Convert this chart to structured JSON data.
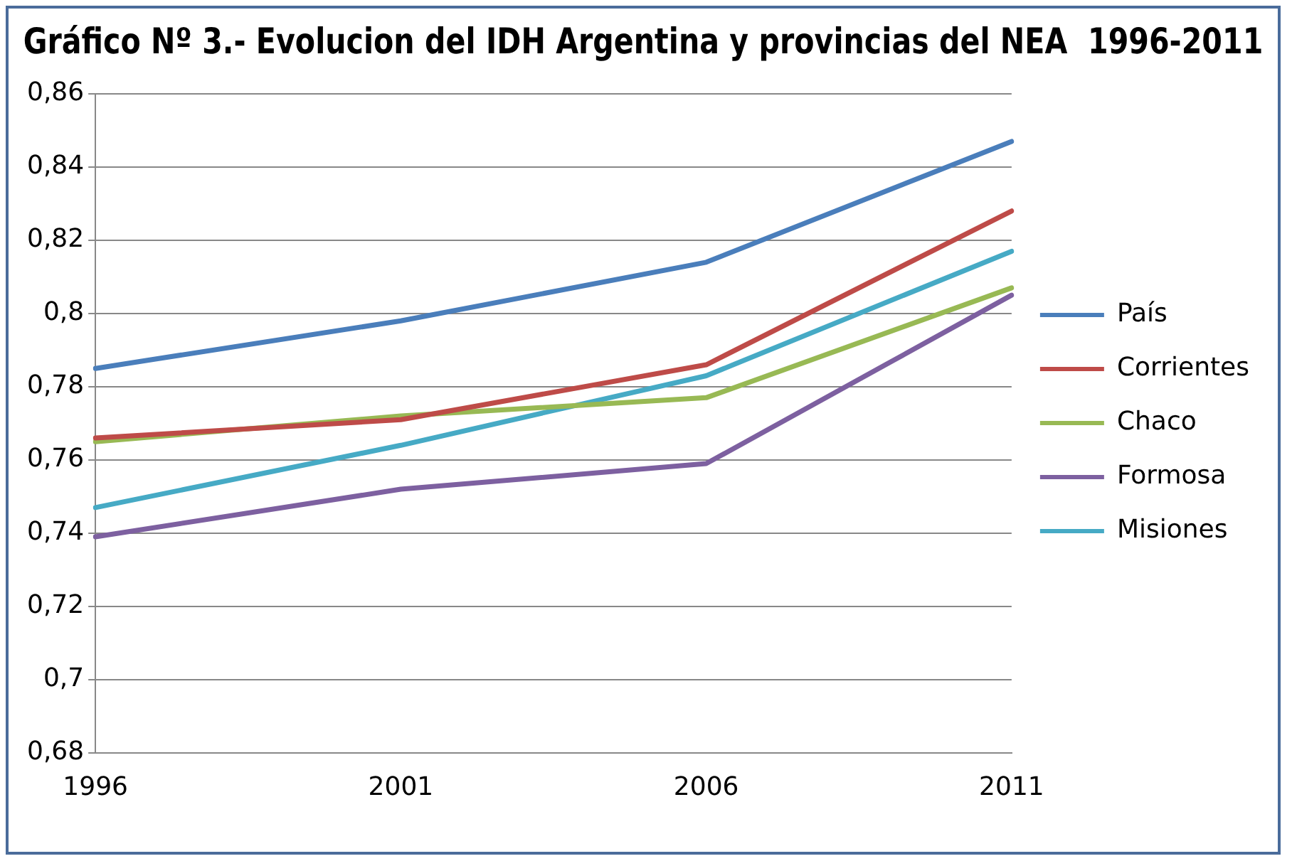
{
  "chart_data": {
    "type": "line",
    "title": "Gráfico Nº 3.- Evolucion del IDH Argentina y provincias del NEA  1996-2011",
    "categories": [
      "1996",
      "2001",
      "2006",
      "2011"
    ],
    "series": [
      {
        "name": "País",
        "color": "#4a7ebb",
        "values": [
          0.785,
          0.798,
          0.814,
          0.847
        ]
      },
      {
        "name": "Corrientes",
        "color": "#be4b48",
        "values": [
          0.766,
          0.771,
          0.786,
          0.828
        ]
      },
      {
        "name": "Chaco",
        "color": "#98b954",
        "values": [
          0.765,
          0.772,
          0.777,
          0.807
        ]
      },
      {
        "name": "Formosa",
        "color": "#7d60a0",
        "values": [
          0.739,
          0.752,
          0.759,
          0.805
        ]
      },
      {
        "name": "Misiones",
        "color": "#46aac5",
        "values": [
          0.747,
          0.764,
          0.783,
          0.817
        ]
      }
    ],
    "ylim": [
      0.68,
      0.86
    ],
    "yticks": [
      {
        "value": 0.68,
        "label": "0,68"
      },
      {
        "value": 0.7,
        "label": "0,7"
      },
      {
        "value": 0.72,
        "label": "0,72"
      },
      {
        "value": 0.74,
        "label": "0,74"
      },
      {
        "value": 0.76,
        "label": "0,76"
      },
      {
        "value": 0.78,
        "label": "0,78"
      },
      {
        "value": 0.8,
        "label": "0,8"
      },
      {
        "value": 0.82,
        "label": "0,82"
      },
      {
        "value": 0.84,
        "label": "0,84"
      },
      {
        "value": 0.86,
        "label": "0,86"
      }
    ],
    "grid": "y",
    "legend": "right",
    "marker": "none",
    "line_style": "solid"
  }
}
